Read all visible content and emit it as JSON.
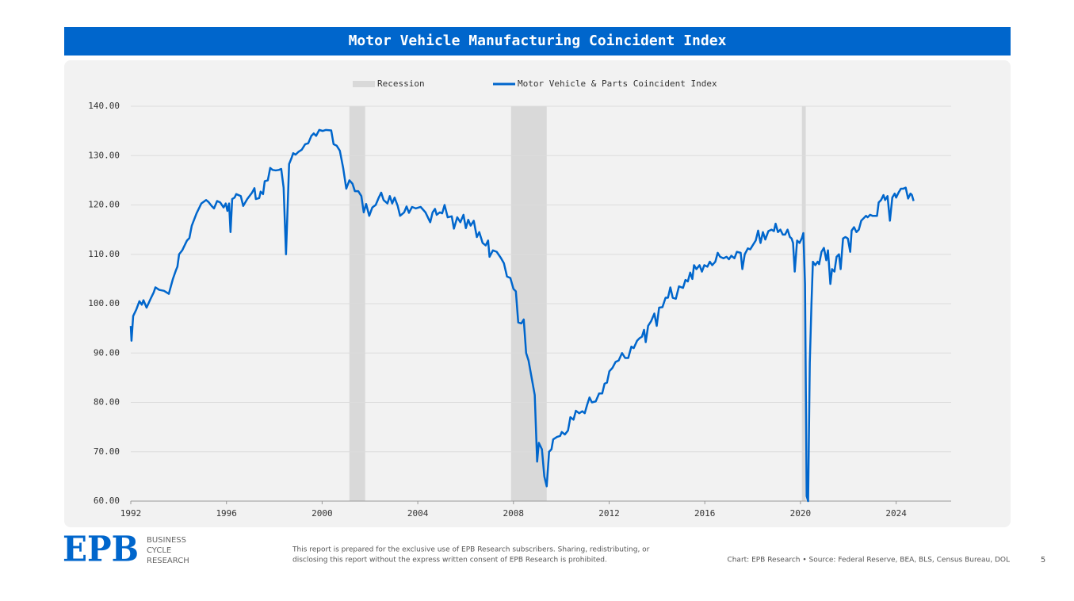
{
  "chart_data": {
    "type": "line",
    "title": "Motor Vehicle Manufacturing Coincident Index",
    "x": [
      1992.0,
      1992.03,
      1992.1,
      1992.23,
      1992.36,
      1992.46,
      1992.53,
      1992.66,
      1992.83,
      1992.96,
      1993.03,
      1993.19,
      1993.39,
      1993.59,
      1993.76,
      1993.89,
      1993.95,
      1994.02,
      1994.15,
      1994.35,
      1994.45,
      1994.55,
      1994.75,
      1994.95,
      1995.15,
      1995.25,
      1995.38,
      1995.48,
      1995.61,
      1995.74,
      1995.88,
      1995.97,
      1996.04,
      1996.11,
      1996.17,
      1996.24,
      1996.34,
      1996.41,
      1996.6,
      1996.7,
      1996.87,
      1997.07,
      1997.17,
      1997.23,
      1997.37,
      1997.43,
      1997.53,
      1997.6,
      1997.73,
      1997.83,
      1997.93,
      1998.06,
      1998.19,
      1998.29,
      1998.39,
      1998.49,
      1998.62,
      1998.72,
      1998.79,
      1998.89,
      1999.02,
      1999.15,
      1999.29,
      1999.42,
      1999.55,
      1999.65,
      1999.75,
      1999.88,
      2000.02,
      2000.15,
      2000.38,
      2000.48,
      2000.61,
      2000.74,
      2000.88,
      2001.01,
      2001.14,
      2001.27,
      2001.37,
      2001.51,
      2001.64,
      2001.74,
      2001.84,
      2001.97,
      2002.1,
      2002.24,
      2002.37,
      2002.47,
      2002.57,
      2002.73,
      2002.83,
      2002.93,
      2003.03,
      2003.16,
      2003.26,
      2003.43,
      2003.53,
      2003.63,
      2003.76,
      2003.92,
      2004.12,
      2004.32,
      2004.52,
      2004.62,
      2004.72,
      2004.79,
      2004.92,
      2005.02,
      2005.12,
      2005.25,
      2005.42,
      2005.51,
      2005.65,
      2005.78,
      2005.91,
      2006.01,
      2006.11,
      2006.21,
      2006.34,
      2006.47,
      2006.57,
      2006.71,
      2006.84,
      2006.94,
      2007.0,
      2007.14,
      2007.3,
      2007.47,
      2007.6,
      2007.73,
      2007.87,
      2008.0,
      2008.1,
      2008.2,
      2008.33,
      2008.43,
      2008.53,
      2008.63,
      2008.76,
      2008.89,
      2008.99,
      2009.06,
      2009.19,
      2009.29,
      2009.39,
      2009.49,
      2009.59,
      2009.66,
      2009.82,
      2009.95,
      2010.02,
      2010.15,
      2010.28,
      2010.38,
      2010.51,
      2010.61,
      2010.75,
      2010.88,
      2010.98,
      2011.08,
      2011.18,
      2011.28,
      2011.44,
      2011.58,
      2011.71,
      2011.81,
      2011.91,
      2012.01,
      2012.14,
      2012.27,
      2012.4,
      2012.54,
      2012.67,
      2012.8,
      2012.93,
      2013.03,
      2013.17,
      2013.27,
      2013.37,
      2013.46,
      2013.53,
      2013.63,
      2013.76,
      2013.89,
      2013.99,
      2014.09,
      2014.23,
      2014.36,
      2014.46,
      2014.56,
      2014.66,
      2014.79,
      2014.92,
      2015.09,
      2015.19,
      2015.29,
      2015.39,
      2015.48,
      2015.55,
      2015.65,
      2015.78,
      2015.88,
      2015.98,
      2016.11,
      2016.21,
      2016.31,
      2016.44,
      2016.54,
      2016.64,
      2016.78,
      2016.91,
      2017.01,
      2017.11,
      2017.24,
      2017.34,
      2017.5,
      2017.57,
      2017.67,
      2017.8,
      2017.9,
      2018.0,
      2018.13,
      2018.23,
      2018.33,
      2018.43,
      2018.53,
      2018.66,
      2018.79,
      2018.89,
      2018.96,
      2019.06,
      2019.16,
      2019.26,
      2019.36,
      2019.46,
      2019.56,
      2019.63,
      2019.69,
      2019.76,
      2019.86,
      2019.96,
      2020.06,
      2020.12,
      2020.19,
      2020.26,
      2020.32,
      2020.39,
      2020.46,
      2020.52,
      2020.62,
      2020.72,
      2020.78,
      2020.88,
      2020.98,
      2021.08,
      2021.15,
      2021.25,
      2021.32,
      2021.42,
      2021.51,
      2021.61,
      2021.68,
      2021.78,
      2021.88,
      2021.98,
      2022.08,
      2022.14,
      2022.24,
      2022.34,
      2022.44,
      2022.54,
      2022.64,
      2022.74,
      2022.81,
      2022.91,
      2023.01,
      2023.11,
      2023.2,
      2023.27,
      2023.37,
      2023.47,
      2023.54,
      2023.64,
      2023.74,
      2023.84,
      2023.94,
      2024.0,
      2024.1,
      2024.2,
      2024.3,
      2024.4,
      2024.5,
      2024.6,
      2024.66,
      2024.73
    ],
    "series": [
      {
        "name": "Motor Vehicle & Parts Coincident Index",
        "color": "#0066cc",
        "values": [
          95.5,
          92.5,
          97.5,
          98.8,
          100.5,
          99.8,
          100.7,
          99.2,
          101,
          102.3,
          103.3,
          102.8,
          102.6,
          102,
          105,
          106.8,
          107.5,
          110,
          110.8,
          112.8,
          113.3,
          115.8,
          118.3,
          120.3,
          121,
          120.6,
          119.8,
          119.3,
          120.8,
          120.5,
          119.5,
          120.3,
          118.8,
          120.3,
          114.5,
          121.2,
          121.5,
          122.2,
          121.8,
          119.8,
          121.2,
          122.5,
          123.4,
          121.2,
          121.4,
          122.7,
          122.2,
          124.8,
          125,
          127.5,
          127.1,
          127,
          127.1,
          127.3,
          123.5,
          110,
          128.3,
          129.5,
          130.5,
          130.2,
          130.8,
          131.2,
          132.3,
          132.5,
          134,
          134.5,
          134,
          135.2,
          135,
          135.2,
          135.1,
          132.3,
          132,
          131,
          127.5,
          123.3,
          125,
          124.3,
          122.8,
          122.8,
          121.8,
          118.5,
          120.2,
          117.8,
          119.5,
          120,
          121.5,
          122.5,
          121,
          120.3,
          121.8,
          120.3,
          121.5,
          119.8,
          117.8,
          118.5,
          119.7,
          118.4,
          119.6,
          119.3,
          119.6,
          118.5,
          116.5,
          118.5,
          119.2,
          118,
          118.5,
          118.3,
          120,
          117.5,
          117.7,
          115.2,
          117.5,
          116.5,
          118,
          115.3,
          117,
          115.8,
          116.8,
          113.5,
          114.5,
          112.3,
          111.8,
          112.8,
          109.5,
          110.8,
          110.5,
          109.3,
          108.2,
          105.5,
          105.2,
          103,
          102.5,
          96.2,
          96,
          96.8,
          90,
          88.5,
          85,
          81.5,
          68,
          71.8,
          70.5,
          65,
          63,
          70,
          70.5,
          72.5,
          73,
          73.2,
          74,
          73.5,
          74.3,
          77,
          76.5,
          78.3,
          77.8,
          78.2,
          77.8,
          79.5,
          81,
          80,
          80.2,
          81.8,
          81.8,
          83.8,
          84,
          86.3,
          87,
          88.2,
          88.5,
          90,
          89,
          89,
          91.3,
          91,
          92.5,
          93,
          93.3,
          94.7,
          92.2,
          95.5,
          96.5,
          98,
          95.5,
          99.2,
          99.3,
          101.2,
          101.2,
          103.3,
          101.2,
          101,
          103.5,
          103.2,
          104.8,
          104.5,
          106.3,
          105,
          107.8,
          107,
          107.8,
          106.5,
          107.8,
          107.5,
          108.5,
          107.8,
          108.5,
          110.3,
          109.5,
          109.2,
          109.5,
          109,
          109.7,
          109.2,
          110.5,
          110.3,
          107,
          110,
          111.2,
          111,
          111.8,
          112.8,
          114.8,
          112.3,
          114.5,
          113,
          114.7,
          115,
          114.7,
          116.2,
          114.5,
          115,
          114,
          114,
          115,
          113.5,
          113.2,
          112.3,
          106.5,
          112.8,
          112.3,
          113.3,
          114.3,
          104,
          61,
          60,
          88,
          100,
          108.5,
          107.8,
          108.5,
          108,
          110.5,
          111.3,
          108.8,
          110.8,
          104,
          107,
          106.5,
          109.5,
          110,
          107,
          113.2,
          113.5,
          113.2,
          110.5,
          114.8,
          115.5,
          114.5,
          115,
          116.8,
          117.3,
          117.8,
          117.5,
          118,
          117.8,
          117.8,
          117.8,
          120.5,
          121,
          122,
          121,
          121.8,
          116.8,
          121.5,
          122.3,
          121.5,
          122.5,
          123.3,
          123.3,
          123.5,
          121.3,
          122.3,
          122,
          120.8
        ]
      }
    ],
    "recession_label": "Recession",
    "recession_color": "#d9d9d9",
    "recessions": [
      {
        "start": 2001.14,
        "end": 2001.8
      },
      {
        "start": 2007.9,
        "end": 2009.39
      },
      {
        "start": 2020.06,
        "end": 2020.22
      }
    ],
    "xlim": [
      1992,
      2026.3
    ],
    "xticks": [
      1992,
      1996,
      2000,
      2004,
      2008,
      2012,
      2016,
      2020,
      2024
    ],
    "ylim": [
      60,
      140
    ],
    "yticks": [
      {
        "value": 60,
        "label": "60.00"
      },
      {
        "value": 70,
        "label": "70.00"
      },
      {
        "value": 80,
        "label": "80.00"
      },
      {
        "value": 90,
        "label": "90.00"
      },
      {
        "value": 100,
        "label": "100.00"
      },
      {
        "value": 110,
        "label": "110.00"
      },
      {
        "value": 120,
        "label": "120.00"
      },
      {
        "value": 130,
        "label": "130.00"
      },
      {
        "value": 140,
        "label": "140.00"
      }
    ],
    "grid": true,
    "legend": "top"
  },
  "footer": {
    "logo": "EPB",
    "brand": [
      "BUSINESS",
      "CYCLE",
      "RESEARCH"
    ],
    "disclaimer": [
      "This report is prepared for the exclusive use of EPB Research subscribers. Sharing, redistributing, or",
      "disclosing this report without the express written consent of EPB Research is prohibited."
    ],
    "source": "Chart: EPB Research  •  Source: Federal Reserve, BEA, BLS, Census Bureau, DOL",
    "page": "5"
  }
}
